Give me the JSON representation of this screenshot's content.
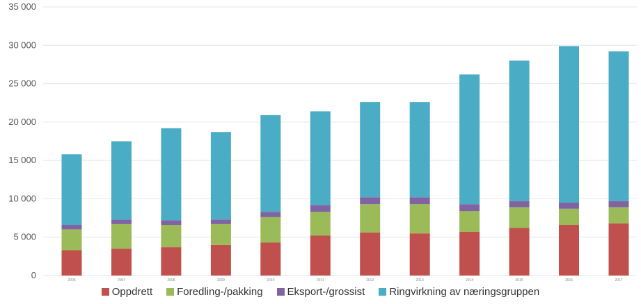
{
  "chart_data": {
    "type": "bar",
    "stacked": true,
    "categories": [
      "2006",
      "2007",
      "2008",
      "2009",
      "2010",
      "2011",
      "2012",
      "2013",
      "2014",
      "2015",
      "2016",
      "2017"
    ],
    "ylim": [
      0,
      35000
    ],
    "yticks": [
      0,
      5000,
      10000,
      15000,
      20000,
      25000,
      30000,
      35000
    ],
    "ytick_labels": [
      "0",
      "5 000",
      "10 000",
      "15 000",
      "20 000",
      "25 000",
      "30 000",
      "35 000"
    ],
    "grid": true,
    "legend_position": "bottom",
    "series": [
      {
        "name": "Oppdrett",
        "color": "#c0504d",
        "values": [
          3300,
          3500,
          3700,
          4000,
          4300,
          5200,
          5600,
          5500,
          5700,
          6200,
          6600,
          6800
        ]
      },
      {
        "name": "Foredling-/pakking",
        "color": "#9bbb59",
        "values": [
          2700,
          3200,
          2900,
          2700,
          3300,
          3100,
          3700,
          3800,
          2700,
          2700,
          2100,
          2100
        ]
      },
      {
        "name": "Eksport-/grossist",
        "color": "#8064a2",
        "values": [
          600,
          600,
          600,
          600,
          700,
          900,
          900,
          900,
          900,
          800,
          800,
          800
        ]
      },
      {
        "name": "Ringvirkning av næringsgruppen",
        "color": "#4bacc6",
        "values": [
          9200,
          10200,
          12000,
          11400,
          12600,
          12200,
          12400,
          12400,
          16900,
          18300,
          20400,
          19500
        ]
      }
    ]
  }
}
